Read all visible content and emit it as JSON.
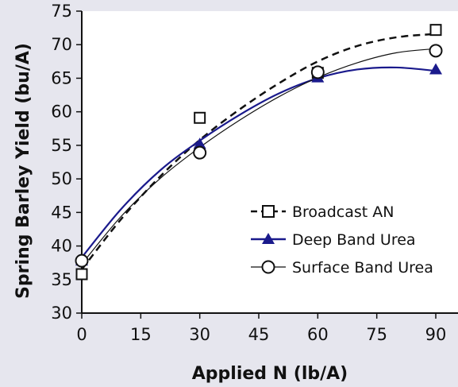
{
  "chart_data": {
    "type": "scatter",
    "xlabel": "Applied N (lb/A)",
    "ylabel": "Spring Barley Yield (bu/A)",
    "xlim": [
      0,
      90
    ],
    "ylim": [
      30,
      75
    ],
    "x_ticks": [
      0,
      15,
      30,
      45,
      60,
      75,
      90
    ],
    "y_ticks": [
      30,
      35,
      40,
      45,
      50,
      55,
      60,
      65,
      70,
      75
    ],
    "grid": false,
    "legend_position": "lower-right",
    "series": [
      {
        "name": "Broadcast AN",
        "marker": "open-square",
        "line_style": "dashed",
        "color": "#111111",
        "x": [
          0,
          30,
          60,
          90
        ],
        "y": [
          35.8,
          59.1,
          65.8,
          72.2
        ],
        "fit_x": [
          0,
          10,
          20,
          30,
          40,
          50,
          60,
          70,
          80,
          90
        ],
        "fit_y": [
          36.5,
          44.0,
          50.4,
          55.8,
          60.3,
          64.2,
          67.5,
          69.8,
          71.1,
          71.6
        ]
      },
      {
        "name": "Deep Band Urea",
        "marker": "filled-triangle",
        "line_style": "solid",
        "color": "#1a1a8c",
        "x": [
          0,
          30,
          60,
          90
        ],
        "y": [
          37.8,
          55.2,
          65.1,
          66.3
        ],
        "fit_x": [
          0,
          10,
          20,
          30,
          40,
          50,
          60,
          70,
          80,
          90
        ],
        "fit_y": [
          38.3,
          45.5,
          51.3,
          55.7,
          59.5,
          62.7,
          65.0,
          66.3,
          66.6,
          66.1
        ]
      },
      {
        "name": "Surface Band Urea",
        "marker": "open-circle",
        "line_style": "solid-thin",
        "color": "#111111",
        "x": [
          0,
          30,
          60,
          90
        ],
        "y": [
          37.8,
          53.9,
          65.9,
          69.1
        ],
        "fit_x": [
          0,
          10,
          20,
          30,
          40,
          50,
          60,
          70,
          80,
          90
        ],
        "fit_y": [
          37.3,
          44.4,
          50.1,
          54.7,
          58.7,
          62.2,
          65.1,
          67.3,
          68.8,
          69.4
        ]
      }
    ]
  }
}
